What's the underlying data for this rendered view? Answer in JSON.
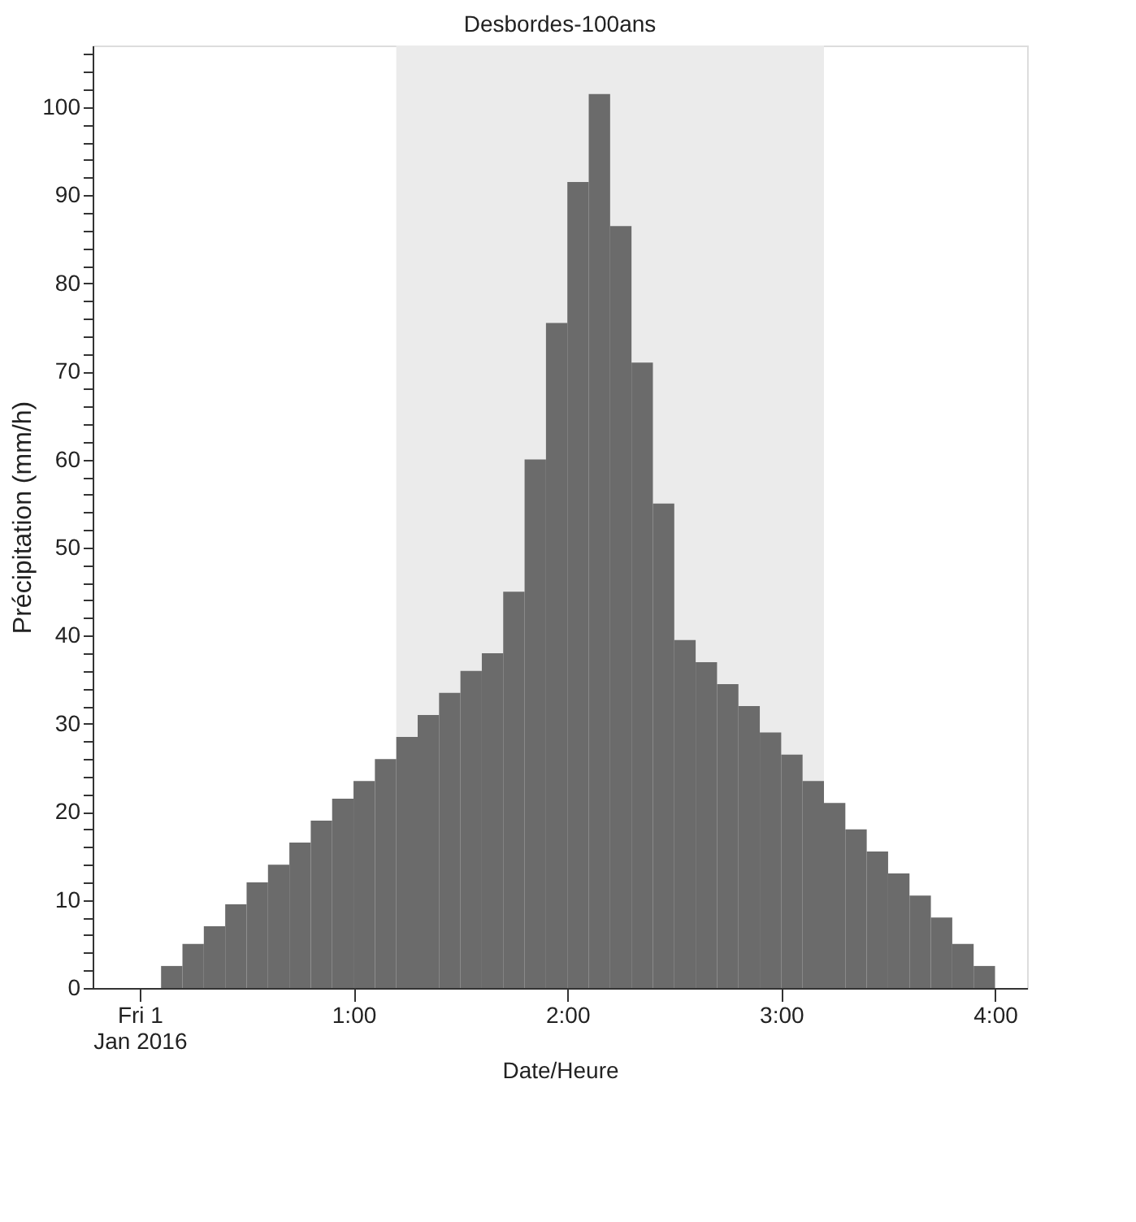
{
  "chart_data": {
    "type": "bar",
    "title": "Desbordes-100ans",
    "xlabel": "Date/Heure",
    "ylabel": "Précipitation (mm/h)",
    "x": [
      0.15,
      0.25,
      0.35,
      0.45,
      0.55,
      0.65,
      0.75,
      0.85,
      0.95,
      1.05,
      1.15,
      1.25,
      1.35,
      1.45,
      1.55,
      1.65,
      1.75,
      1.85,
      1.95,
      2.05,
      2.15,
      2.25,
      2.35,
      2.45,
      2.55,
      2.65,
      2.75,
      2.85,
      2.95,
      3.05,
      3.15,
      3.25,
      3.35,
      3.45,
      3.55,
      3.65,
      3.75,
      3.85,
      3.95
    ],
    "series": [
      {
        "color": "#6b6b6b",
        "values": [
          2.5,
          5,
          7,
          9.5,
          12,
          14,
          16.5,
          19,
          21.5,
          23.5,
          26,
          28.5,
          31,
          33.5,
          36,
          38,
          45,
          60,
          75.5,
          91.5,
          101.5,
          86.5,
          71,
          55,
          39.5,
          37,
          34.5,
          32,
          29,
          26.5,
          23.5,
          21,
          18,
          15.5,
          13,
          10.5,
          8,
          5,
          2.5
        ]
      }
    ],
    "xlim": [
      -0.22,
      4.15
    ],
    "xticks": [
      {
        "value": 0,
        "label": "Fri 1\nJan 2016"
      },
      {
        "value": 1,
        "label": "1:00"
      },
      {
        "value": 2,
        "label": "2:00"
      },
      {
        "value": 3,
        "label": "3:00"
      },
      {
        "value": 4,
        "label": "4:00"
      }
    ],
    "ylim": [
      0,
      107
    ],
    "yticks": [
      0,
      {
        "value": 2,
        "label": null
      },
      {
        "value": 4,
        "label": null
      },
      {
        "value": 6,
        "label": null
      },
      {
        "value": 8,
        "label": null
      },
      10,
      {
        "value": 12,
        "label": null
      },
      {
        "value": 14,
        "label": null
      },
      {
        "value": 16,
        "label": null
      },
      {
        "value": 18,
        "label": null
      },
      20,
      {
        "value": 22,
        "label": null
      },
      {
        "value": 24,
        "label": null
      },
      {
        "value": 26,
        "label": null
      },
      {
        "value": 28,
        "label": null
      },
      30,
      {
        "value": 32,
        "label": null
      },
      {
        "value": 34,
        "label": null
      },
      {
        "value": 36,
        "label": null
      },
      {
        "value": 38,
        "label": null
      },
      40,
      {
        "value": 42,
        "label": null
      },
      {
        "value": 44,
        "label": null
      },
      {
        "value": 46,
        "label": null
      },
      {
        "value": 48,
        "label": null
      },
      50,
      {
        "value": 52,
        "label": null
      },
      {
        "value": 54,
        "label": null
      },
      {
        "value": 56,
        "label": null
      },
      {
        "value": 58,
        "label": null
      },
      60,
      {
        "value": 62,
        "label": null
      },
      {
        "value": 64,
        "label": null
      },
      {
        "value": 66,
        "label": null
      },
      {
        "value": 68,
        "label": null
      },
      70,
      {
        "value": 72,
        "label": null
      },
      {
        "value": 74,
        "label": null
      },
      {
        "value": 76,
        "label": null
      },
      {
        "value": 78,
        "label": null
      },
      80,
      {
        "value": 82,
        "label": null
      },
      {
        "value": 84,
        "label": null
      },
      {
        "value": 86,
        "label": null
      },
      {
        "value": 88,
        "label": null
      },
      90,
      {
        "value": 92,
        "label": null
      },
      {
        "value": 94,
        "label": null
      },
      {
        "value": 96,
        "label": null
      },
      {
        "value": 98,
        "label": null
      },
      100,
      {
        "value": 102,
        "label": null
      },
      {
        "value": 104,
        "label": null
      },
      {
        "value": 106,
        "label": null
      }
    ],
    "bands": [
      {
        "axis": "x",
        "from": 1.2,
        "to": 3.2,
        "color": "#ebebeb"
      }
    ],
    "grid": false
  }
}
